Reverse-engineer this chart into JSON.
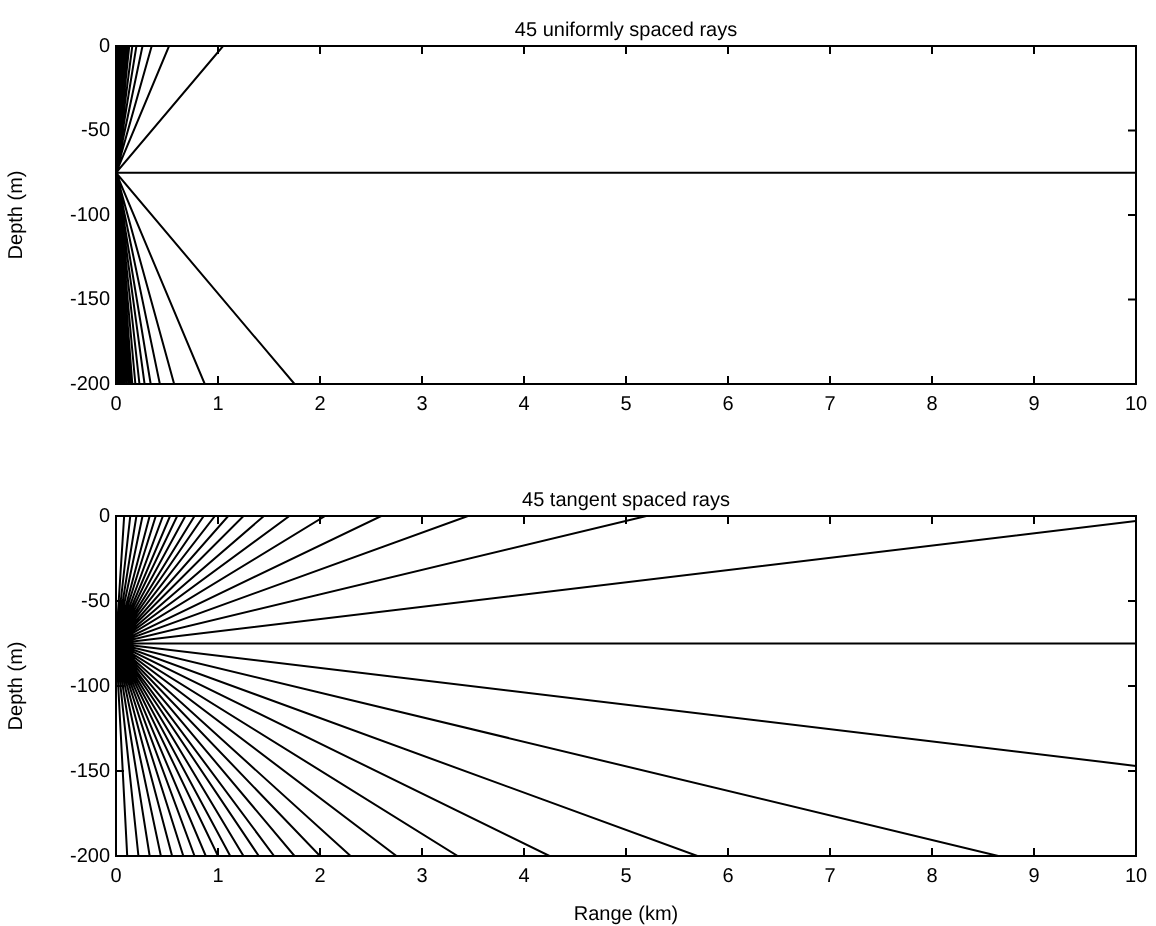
{
  "chart_data": [
    {
      "type": "line",
      "title": "45 uniformly spaced rays",
      "ylabel": "Depth (m)",
      "xlim": [
        0,
        10
      ],
      "xticks": [
        0,
        1,
        2,
        3,
        4,
        5,
        6,
        7,
        8,
        9,
        10
      ],
      "ylim": [
        -200,
        0
      ],
      "yticks": [
        -200,
        -150,
        -100,
        -50,
        0
      ],
      "series": [
        {
          "color": "#000000",
          "x": [
            0,
            1.05,
            0,
            0.52,
            0,
            0.35,
            0,
            0.26,
            0,
            0.2,
            0,
            0.16,
            0,
            0.13,
            0,
            0.11,
            0,
            0.09,
            0,
            0.08,
            0,
            0.07,
            0,
            0.06,
            0,
            0.05,
            0,
            0.04,
            0,
            0.03,
            0,
            0.025,
            0,
            0.02,
            0,
            0.015,
            0,
            0.01,
            0,
            0.007,
            0,
            0.004,
            0,
            0.002,
            0,
            10,
            0,
            1.75,
            0,
            0.87,
            0,
            0.57,
            0,
            0.43,
            0,
            0.34,
            0,
            0.28,
            0,
            0.23,
            0,
            0.19,
            0,
            0.16,
            0,
            0.14,
            0,
            0.12,
            0,
            0.1,
            0,
            0.08,
            0,
            0.07,
            0,
            0.055,
            0,
            0.045,
            0,
            0.035,
            0,
            0.025,
            0,
            0.018,
            0,
            0.012,
            0,
            0.006,
            0,
            0.002
          ],
          "values": [
            -75,
            0,
            -75,
            0,
            -75,
            0,
            -75,
            0,
            -75,
            0,
            -75,
            0,
            -75,
            0,
            -75,
            0,
            -75,
            0,
            -75,
            0,
            -75,
            0,
            -75,
            0,
            -75,
            0,
            -75,
            0,
            -75,
            0,
            -75,
            0,
            -75,
            0,
            -75,
            0,
            -75,
            0,
            -75,
            0,
            -75,
            0,
            -75,
            0,
            -75,
            -75,
            -75,
            -200,
            -75,
            -200,
            -75,
            -200,
            -75,
            -200,
            -75,
            -200,
            -75,
            -200,
            -75,
            -200,
            -75,
            -200,
            -75,
            -200,
            -75,
            -200,
            -75,
            -200,
            -75,
            -200,
            -75,
            -200,
            -75,
            -200,
            -75,
            -200,
            -75,
            -200,
            -75,
            -200,
            -75,
            -200,
            -75,
            -200,
            -75,
            -200,
            -75,
            -200,
            -75,
            -200
          ]
        }
      ]
    },
    {
      "type": "line",
      "title": "45 tangent spaced rays",
      "xlabel": "Range (km)",
      "ylabel": "Depth (m)",
      "xlim": [
        0,
        10
      ],
      "xticks": [
        0,
        1,
        2,
        3,
        4,
        5,
        6,
        7,
        8,
        9,
        10
      ],
      "ylim": [
        -200,
        0
      ],
      "yticks": [
        -200,
        -150,
        -100,
        -50,
        0
      ],
      "series": [
        {
          "color": "#000000",
          "x": [
            0,
            10,
            0,
            5.2,
            0,
            3.45,
            0,
            2.6,
            0,
            2.05,
            0,
            1.7,
            0,
            1.45,
            0,
            1.25,
            0,
            1.1,
            0,
            0.97,
            0,
            0.86,
            0,
            0.77,
            0,
            0.68,
            0,
            0.6,
            0,
            0.53,
            0,
            0.46,
            0,
            0.39,
            0,
            0.33,
            0,
            0.26,
            0,
            0.2,
            0,
            0.14,
            0,
            0.08,
            0,
            10,
            0,
            10,
            0,
            8.65,
            0,
            5.7,
            0,
            4.25,
            0,
            3.35,
            0,
            2.75,
            0,
            2.3,
            0,
            2.0,
            0,
            1.75,
            0,
            1.55,
            0,
            1.4,
            0,
            1.25,
            0,
            1.12,
            0,
            1.0,
            0,
            0.88,
            0,
            0.77,
            0,
            0.66,
            0,
            0.55,
            0,
            0.44,
            0,
            0.33,
            0,
            0.22,
            0,
            0.11
          ],
          "values": [
            -75,
            -3,
            -75,
            0,
            -75,
            0,
            -75,
            0,
            -75,
            0,
            -75,
            0,
            -75,
            0,
            -75,
            0,
            -75,
            0,
            -75,
            0,
            -75,
            0,
            -75,
            0,
            -75,
            0,
            -75,
            0,
            -75,
            0,
            -75,
            0,
            -75,
            0,
            -75,
            0,
            -75,
            0,
            -75,
            0,
            -75,
            0,
            -75,
            0,
            -75,
            -75,
            -75,
            -147,
            -75,
            -200,
            -75,
            -200,
            -75,
            -200,
            -75,
            -200,
            -75,
            -200,
            -75,
            -200,
            -75,
            -200,
            -75,
            -200,
            -75,
            -200,
            -75,
            -200,
            -75,
            -200,
            -75,
            -200,
            -75,
            -200,
            -75,
            -200,
            -75,
            -200,
            -75,
            -200,
            -75,
            -200,
            -75,
            -200,
            -75,
            -200,
            -75,
            -200,
            -75,
            -200
          ]
        }
      ]
    }
  ]
}
